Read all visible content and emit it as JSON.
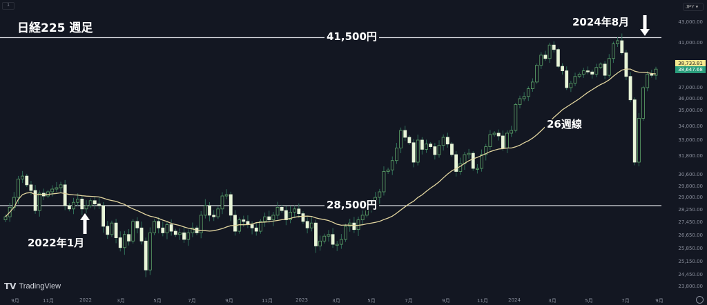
{
  "chart_data": {
    "type": "candlestick",
    "title": "日経225 週足",
    "currency": "JPY",
    "y_axis_labels": [
      "43,000.00",
      "41,000.00",
      "37,000.00",
      "36,000.00",
      "35,000.00",
      "34,000.00",
      "33,000.00",
      "31,800.00",
      "30,600.00",
      "29,800.00",
      "29,000.00",
      "28,250.00",
      "27,450.00",
      "26,650.00",
      "25,850.00",
      "25,150.00",
      "24,450.00",
      "23,800.00"
    ],
    "x_axis_labels": [
      "9月",
      "11月",
      "2022",
      "3月",
      "5月",
      "7月",
      "9月",
      "11月",
      "2023",
      "3月",
      "5月",
      "7月",
      "9月",
      "11月",
      "2024",
      "3月",
      "5月",
      "7月",
      "9月"
    ],
    "last_price_tags": [
      {
        "value": "38,733.81",
        "color": "#f5e98f"
      },
      {
        "value": "38,647.68",
        "color": "#2a9d7c"
      }
    ],
    "horizontal_lines": [
      {
        "label": "41,500円",
        "value": 41500
      },
      {
        "label": "28,500円",
        "value": 28500
      }
    ],
    "moving_average": {
      "label": "26週線",
      "period": 26,
      "color": "#e3d6a0"
    },
    "annotations": [
      {
        "text": "2022年1月",
        "arrow": "up"
      },
      {
        "text": "2024年8月",
        "arrow": "down"
      }
    ],
    "closes": [
      27800,
      28400,
      29000,
      30300,
      30500,
      29900,
      29500,
      28200,
      29300,
      29100,
      29400,
      29600,
      29700,
      29900,
      28500,
      28300,
      28700,
      28900,
      28300,
      28500,
      28800,
      28600,
      28500,
      27200,
      26700,
      27400,
      26500,
      25900,
      26700,
      26300,
      27500,
      27100,
      26300,
      24700,
      26800,
      27500,
      27100,
      26800,
      27300,
      26900,
      26700,
      26800,
      26400,
      26800,
      27100,
      26800,
      27900,
      28500,
      27900,
      27800,
      28300,
      29100,
      29200,
      27900,
      26900,
      27600,
      27500,
      27300,
      27100,
      26900,
      27500,
      27800,
      27600,
      27900,
      28400,
      28200,
      27600,
      28100,
      28300,
      28000,
      27500,
      27100,
      27400,
      26000,
      26300,
      26600,
      26700,
      26100,
      26100,
      26400,
      27200,
      27400,
      27000,
      27600,
      27900,
      28400,
      28600,
      29000,
      29400,
      30800,
      30900,
      31500,
      32400,
      33700,
      33200,
      32800,
      31400,
      33000,
      32300,
      32700,
      32500,
      31900,
      32600,
      33200,
      32700,
      31900,
      30800,
      31300,
      31900,
      32000,
      31000,
      31000,
      31900,
      32500,
      33400,
      33500,
      33300,
      32400,
      33500,
      33700,
      35500,
      36000,
      36200,
      36900,
      37500,
      39000,
      39900,
      39600,
      40800,
      40400,
      38900,
      38500,
      37000,
      37400,
      38000,
      38200,
      38500,
      38400,
      38200,
      38800,
      39100,
      38100,
      39600,
      40900,
      41200,
      40100,
      38000,
      35900,
      31400,
      34500,
      37000,
      38200,
      38100,
      38650
    ]
  },
  "ui": {
    "symbol_badge": "1",
    "currency_selector": "JPY",
    "brand": "TradingView"
  },
  "annotations_text": {
    "title": "日経225 週足",
    "top_line": "41,500円",
    "bottom_line": "28,500円",
    "ma_label": "26週線",
    "start_label": "2022年1月",
    "end_label": "2024年8月"
  }
}
